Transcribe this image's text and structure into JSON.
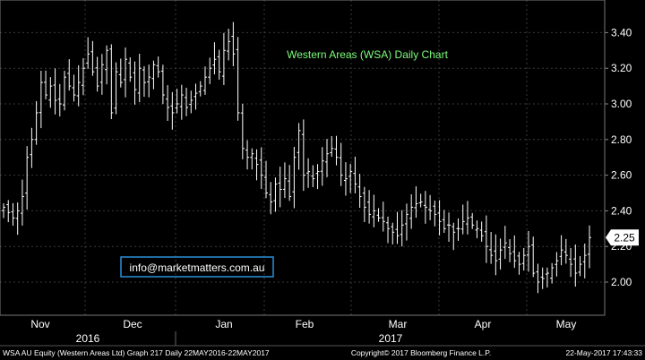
{
  "chart_data": {
    "type": "ohlc",
    "title": "Western Areas (WSA) Daily Chart",
    "yticks": [
      "2.00",
      "2.20",
      "2.40",
      "2.60",
      "2.80",
      "3.00",
      "3.20",
      "3.40"
    ],
    "ylim": [
      1.82,
      3.52
    ],
    "months": [
      "Nov",
      "Dec",
      "Jan",
      "Feb",
      "Mar",
      "Apr",
      "May"
    ],
    "years": [
      "2016",
      "2017"
    ],
    "last_price": "2.25",
    "grid": true,
    "watermark": "info@marketmatters.com.au",
    "close": [
      2.42,
      2.39,
      2.36,
      2.4,
      2.48,
      2.7,
      2.8,
      2.95,
      3.12,
      3.05,
      3.1,
      3.02,
      3.0,
      3.15,
      3.1,
      3.05,
      3.12,
      3.2,
      3.28,
      3.18,
      3.1,
      3.22,
      3.3,
      2.95,
      3.18,
      3.12,
      3.25,
      3.15,
      3.08,
      3.2,
      3.12,
      3.15,
      3.22,
      3.18,
      3.05,
      2.98,
      2.95,
      3.0,
      3.05,
      2.98,
      3.02,
      3.06,
      3.1,
      3.15,
      3.2,
      3.25,
      3.18,
      3.3,
      3.35,
      3.28,
      2.95,
      2.75,
      2.7,
      2.72,
      2.66,
      2.6,
      2.5,
      2.45,
      2.55,
      2.52,
      2.58,
      2.48,
      2.7,
      2.85,
      2.6,
      2.62,
      2.58,
      2.62,
      2.68,
      2.72,
      2.75,
      2.7,
      2.6,
      2.58,
      2.62,
      2.55,
      2.48,
      2.42,
      2.38,
      2.4,
      2.36,
      2.34,
      2.3,
      2.28,
      2.26,
      2.32,
      2.38,
      2.42,
      2.44,
      2.45,
      2.42,
      2.4,
      2.38,
      2.34,
      2.3,
      2.32,
      2.28,
      2.3,
      2.34,
      2.36,
      2.32,
      2.3,
      2.26,
      2.2,
      2.15,
      2.12,
      2.18,
      2.22,
      2.16,
      2.12,
      2.1,
      2.15,
      2.2,
      2.05,
      2.0,
      2.02,
      2.05,
      2.08,
      2.12,
      2.18,
      2.15,
      2.1,
      2.05,
      2.1,
      2.15,
      2.25
    ]
  },
  "footer": {
    "left": "WSA AU Equity (Western Areas Ltd) Graph 217  Daily 22MAY2016-22MAY2017",
    "center": "Copyright© 2017 Bloomberg Finance L.P.",
    "right": "22-May-2017 17:43:33"
  },
  "colors": {
    "background": "#000000",
    "bars": "#ffffff",
    "title": "#7CFC7C",
    "watermark_border": "#2a8fd6",
    "grid": "#3a3a3a"
  }
}
